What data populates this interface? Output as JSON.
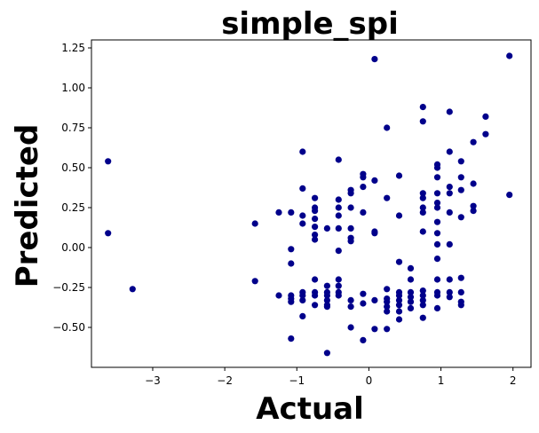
{
  "chart_data": {
    "type": "scatter",
    "title": "simple_spi",
    "xlabel": "Actual",
    "ylabel": "Predicted",
    "xlim": [
      -3.85,
      2.25
    ],
    "ylim": [
      -0.75,
      1.3
    ],
    "xticks": [
      -3,
      -2,
      -1,
      0,
      1,
      2
    ],
    "yticks": [
      -0.5,
      -0.25,
      0.0,
      0.25,
      0.5,
      0.75,
      1.0,
      1.25
    ],
    "xtick_labels": [
      "−3",
      "−2",
      "−1",
      "0",
      "1",
      "2"
    ],
    "ytick_labels": [
      "−0.50",
      "−0.25",
      "0.00",
      "0.25",
      "0.50",
      "0.75",
      "1.00",
      "1.25"
    ],
    "grid": false,
    "marker_color": "#00008b",
    "points": [
      {
        "x": -3.62,
        "y": 0.54
      },
      {
        "x": -3.62,
        "y": 0.09
      },
      {
        "x": -3.28,
        "y": -0.26
      },
      {
        "x": -1.58,
        "y": 0.15
      },
      {
        "x": -1.58,
        "y": -0.21
      },
      {
        "x": -1.25,
        "y": 0.22
      },
      {
        "x": -1.25,
        "y": -0.3
      },
      {
        "x": -1.08,
        "y": 0.22
      },
      {
        "x": -1.08,
        "y": -0.01
      },
      {
        "x": -1.08,
        "y": -0.1
      },
      {
        "x": -1.08,
        "y": -0.3
      },
      {
        "x": -1.08,
        "y": -0.32
      },
      {
        "x": -1.08,
        "y": -0.34
      },
      {
        "x": -1.08,
        "y": -0.57
      },
      {
        "x": -0.92,
        "y": 0.6
      },
      {
        "x": -0.92,
        "y": 0.37
      },
      {
        "x": -0.92,
        "y": 0.2
      },
      {
        "x": -0.92,
        "y": 0.15
      },
      {
        "x": -0.92,
        "y": -0.28
      },
      {
        "x": -0.92,
        "y": -0.3
      },
      {
        "x": -0.92,
        "y": -0.33
      },
      {
        "x": -0.92,
        "y": -0.43
      },
      {
        "x": -0.75,
        "y": 0.31
      },
      {
        "x": -0.75,
        "y": 0.25
      },
      {
        "x": -0.75,
        "y": 0.23
      },
      {
        "x": -0.75,
        "y": 0.18
      },
      {
        "x": -0.75,
        "y": 0.13
      },
      {
        "x": -0.75,
        "y": 0.08
      },
      {
        "x": -0.75,
        "y": 0.05
      },
      {
        "x": -0.75,
        "y": -0.2
      },
      {
        "x": -0.75,
        "y": -0.28
      },
      {
        "x": -0.75,
        "y": -0.3
      },
      {
        "x": -0.75,
        "y": -0.36
      },
      {
        "x": -0.58,
        "y": 0.12
      },
      {
        "x": -0.58,
        "y": -0.24
      },
      {
        "x": -0.58,
        "y": -0.28
      },
      {
        "x": -0.58,
        "y": -0.3
      },
      {
        "x": -0.58,
        "y": -0.33
      },
      {
        "x": -0.58,
        "y": -0.36
      },
      {
        "x": -0.58,
        "y": -0.37
      },
      {
        "x": -0.58,
        "y": -0.66
      },
      {
        "x": -0.42,
        "y": 0.55
      },
      {
        "x": -0.42,
        "y": 0.3
      },
      {
        "x": -0.42,
        "y": 0.25
      },
      {
        "x": -0.42,
        "y": 0.2
      },
      {
        "x": -0.42,
        "y": 0.12
      },
      {
        "x": -0.42,
        "y": -0.02
      },
      {
        "x": -0.42,
        "y": -0.2
      },
      {
        "x": -0.42,
        "y": -0.24
      },
      {
        "x": -0.42,
        "y": -0.28
      },
      {
        "x": -0.42,
        "y": -0.3
      },
      {
        "x": -0.25,
        "y": 0.36
      },
      {
        "x": -0.25,
        "y": 0.34
      },
      {
        "x": -0.25,
        "y": 0.25
      },
      {
        "x": -0.25,
        "y": 0.12
      },
      {
        "x": -0.25,
        "y": 0.06
      },
      {
        "x": -0.25,
        "y": 0.04
      },
      {
        "x": -0.25,
        "y": -0.33
      },
      {
        "x": -0.25,
        "y": -0.37
      },
      {
        "x": -0.25,
        "y": -0.5
      },
      {
        "x": -0.08,
        "y": 0.46
      },
      {
        "x": -0.08,
        "y": 0.44
      },
      {
        "x": -0.08,
        "y": 0.38
      },
      {
        "x": -0.08,
        "y": 0.22
      },
      {
        "x": -0.08,
        "y": -0.29
      },
      {
        "x": -0.08,
        "y": -0.35
      },
      {
        "x": -0.08,
        "y": -0.58
      },
      {
        "x": 0.08,
        "y": 1.18
      },
      {
        "x": 0.08,
        "y": 0.42
      },
      {
        "x": 0.08,
        "y": 0.1
      },
      {
        "x": 0.08,
        "y": 0.09
      },
      {
        "x": 0.08,
        "y": -0.33
      },
      {
        "x": 0.08,
        "y": -0.51
      },
      {
        "x": 0.25,
        "y": 0.75
      },
      {
        "x": 0.25,
        "y": 0.31
      },
      {
        "x": 0.25,
        "y": -0.26
      },
      {
        "x": 0.25,
        "y": -0.32
      },
      {
        "x": 0.25,
        "y": -0.34
      },
      {
        "x": 0.25,
        "y": -0.37
      },
      {
        "x": 0.25,
        "y": -0.4
      },
      {
        "x": 0.25,
        "y": -0.51
      },
      {
        "x": 0.42,
        "y": 0.45
      },
      {
        "x": 0.42,
        "y": 0.2
      },
      {
        "x": 0.42,
        "y": -0.09
      },
      {
        "x": 0.42,
        "y": -0.28
      },
      {
        "x": 0.42,
        "y": -0.3
      },
      {
        "x": 0.42,
        "y": -0.33
      },
      {
        "x": 0.42,
        "y": -0.36
      },
      {
        "x": 0.42,
        "y": -0.4
      },
      {
        "x": 0.42,
        "y": -0.45
      },
      {
        "x": 0.58,
        "y": -0.13
      },
      {
        "x": 0.58,
        "y": -0.2
      },
      {
        "x": 0.58,
        "y": -0.28
      },
      {
        "x": 0.58,
        "y": -0.31
      },
      {
        "x": 0.58,
        "y": -0.34
      },
      {
        "x": 0.58,
        "y": -0.38
      },
      {
        "x": 0.75,
        "y": 0.88
      },
      {
        "x": 0.75,
        "y": 0.79
      },
      {
        "x": 0.75,
        "y": 0.34
      },
      {
        "x": 0.75,
        "y": 0.31
      },
      {
        "x": 0.75,
        "y": 0.25
      },
      {
        "x": 0.75,
        "y": 0.22
      },
      {
        "x": 0.75,
        "y": 0.1
      },
      {
        "x": 0.75,
        "y": -0.27
      },
      {
        "x": 0.75,
        "y": -0.3
      },
      {
        "x": 0.75,
        "y": -0.33
      },
      {
        "x": 0.75,
        "y": -0.36
      },
      {
        "x": 0.75,
        "y": -0.44
      },
      {
        "x": 0.95,
        "y": 0.52
      },
      {
        "x": 0.95,
        "y": 0.5
      },
      {
        "x": 0.95,
        "y": 0.44
      },
      {
        "x": 0.95,
        "y": 0.34
      },
      {
        "x": 0.95,
        "y": 0.28
      },
      {
        "x": 0.95,
        "y": 0.25
      },
      {
        "x": 0.95,
        "y": 0.16
      },
      {
        "x": 0.95,
        "y": 0.09
      },
      {
        "x": 0.95,
        "y": 0.02
      },
      {
        "x": 0.95,
        "y": -0.07
      },
      {
        "x": 0.95,
        "y": -0.2
      },
      {
        "x": 0.95,
        "y": -0.28
      },
      {
        "x": 0.95,
        "y": -0.3
      },
      {
        "x": 0.95,
        "y": -0.38
      },
      {
        "x": 1.12,
        "y": 0.85
      },
      {
        "x": 1.12,
        "y": 0.6
      },
      {
        "x": 1.12,
        "y": 0.38
      },
      {
        "x": 1.12,
        "y": 0.34
      },
      {
        "x": 1.12,
        "y": 0.22
      },
      {
        "x": 1.12,
        "y": 0.02
      },
      {
        "x": 1.12,
        "y": -0.2
      },
      {
        "x": 1.12,
        "y": -0.28
      },
      {
        "x": 1.12,
        "y": -0.31
      },
      {
        "x": 1.28,
        "y": 0.54
      },
      {
        "x": 1.28,
        "y": 0.44
      },
      {
        "x": 1.28,
        "y": 0.36
      },
      {
        "x": 1.28,
        "y": 0.19
      },
      {
        "x": 1.28,
        "y": -0.19
      },
      {
        "x": 1.28,
        "y": -0.28
      },
      {
        "x": 1.28,
        "y": -0.34
      },
      {
        "x": 1.28,
        "y": -0.36
      },
      {
        "x": 1.45,
        "y": 0.66
      },
      {
        "x": 1.45,
        "y": 0.4
      },
      {
        "x": 1.45,
        "y": 0.26
      },
      {
        "x": 1.45,
        "y": 0.23
      },
      {
        "x": 1.62,
        "y": 0.82
      },
      {
        "x": 1.62,
        "y": 0.71
      },
      {
        "x": 1.95,
        "y": 1.2
      },
      {
        "x": 1.95,
        "y": 0.33
      }
    ]
  }
}
